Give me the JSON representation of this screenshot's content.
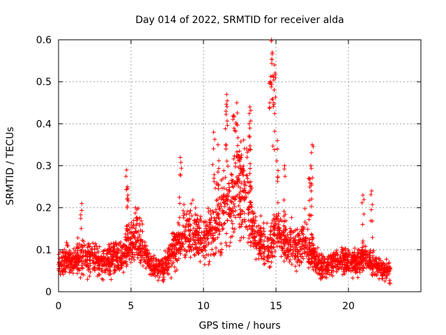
{
  "chart_data": {
    "type": "scatter",
    "title": "Day 014 of 2022, SRMTID for receiver alda",
    "xlabel": "GPS time / hours",
    "ylabel": "SRMTID / TECUs",
    "xlim": [
      0,
      25
    ],
    "ylim": [
      0,
      0.6
    ],
    "x_ticks": [
      0,
      5,
      10,
      15,
      20
    ],
    "x_tick_labels": [
      "0",
      "5",
      "10",
      "15",
      "20"
    ],
    "y_ticks": [
      0,
      0.1,
      0.2,
      0.3,
      0.4,
      0.5,
      0.6
    ],
    "y_tick_labels": [
      "0",
      "0.1",
      "0.2",
      "0.3",
      "0.4",
      "0.5",
      "0.6"
    ],
    "grid": true,
    "marker": "+",
    "series_color": "#ff0000",
    "profile_x": [
      0,
      0.5,
      1,
      1.5,
      2,
      2.5,
      3,
      3.5,
      4,
      4.5,
      5,
      5.5,
      6,
      6.5,
      7,
      7.5,
      8,
      8.5,
      9,
      9.5,
      10,
      10.5,
      11,
      11.5,
      12,
      12.5,
      13,
      13.5,
      14,
      14.5,
      15,
      15.5,
      16,
      16.5,
      17,
      17.5,
      18,
      18.5,
      19,
      19.5,
      20,
      20.5,
      21,
      21.5,
      22,
      22.5,
      22.9
    ],
    "profile_y": [
      0.07,
      0.075,
      0.07,
      0.08,
      0.085,
      0.08,
      0.07,
      0.075,
      0.08,
      0.09,
      0.12,
      0.13,
      0.09,
      0.06,
      0.05,
      0.07,
      0.1,
      0.13,
      0.14,
      0.13,
      0.12,
      0.15,
      0.17,
      0.2,
      0.22,
      0.26,
      0.25,
      0.13,
      0.11,
      0.1,
      0.15,
      0.13,
      0.11,
      0.1,
      0.12,
      0.09,
      0.06,
      0.06,
      0.07,
      0.08,
      0.07,
      0.07,
      0.08,
      0.07,
      0.06,
      0.05,
      0.05
    ],
    "spikes": [
      {
        "x": 1.6,
        "y": 0.21
      },
      {
        "x": 4.7,
        "y": 0.29
      },
      {
        "x": 4.75,
        "y": 0.25
      },
      {
        "x": 5.3,
        "y": 0.2
      },
      {
        "x": 8.4,
        "y": 0.32
      },
      {
        "x": 10.7,
        "y": 0.38
      },
      {
        "x": 11.0,
        "y": 0.35
      },
      {
        "x": 11.6,
        "y": 0.47
      },
      {
        "x": 11.55,
        "y": 0.43
      },
      {
        "x": 12.1,
        "y": 0.42
      },
      {
        "x": 12.3,
        "y": 0.45
      },
      {
        "x": 12.6,
        "y": 0.32
      },
      {
        "x": 13.2,
        "y": 0.44
      },
      {
        "x": 13.15,
        "y": 0.4
      },
      {
        "x": 14.7,
        "y": 0.6
      },
      {
        "x": 14.75,
        "y": 0.57
      },
      {
        "x": 14.9,
        "y": 0.54
      },
      {
        "x": 14.6,
        "y": 0.5
      },
      {
        "x": 14.85,
        "y": 0.45
      },
      {
        "x": 15.1,
        "y": 0.36
      },
      {
        "x": 15.6,
        "y": 0.3
      },
      {
        "x": 17.5,
        "y": 0.35
      },
      {
        "x": 17.4,
        "y": 0.3
      },
      {
        "x": 17.3,
        "y": 0.27
      },
      {
        "x": 21.0,
        "y": 0.23
      },
      {
        "x": 21.6,
        "y": 0.24
      }
    ]
  }
}
